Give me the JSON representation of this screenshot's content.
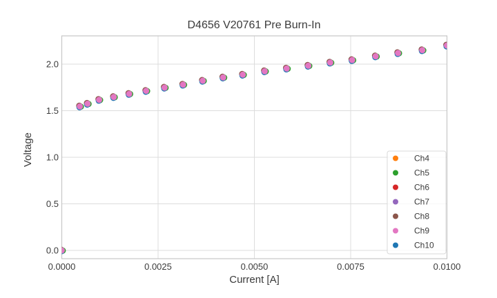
{
  "chart_data": {
    "type": "scatter",
    "title": "D4656 V20761 Pre Burn-In",
    "xlabel": "Current [A]",
    "ylabel": "Voltage",
    "xlim": [
      0,
      0.01
    ],
    "ylim": [
      -0.09,
      2.3
    ],
    "grid": "both",
    "grid_color": "#dcdcdc",
    "spine_color": "#c6c6c6",
    "background_color": "#ffffff",
    "legend_position": "lower-right",
    "x_ticks": {
      "values": [
        0.0,
        0.0025,
        0.005,
        0.0075,
        0.01
      ],
      "labels": [
        "0.0000",
        "0.0025",
        "0.0050",
        "0.0075",
        "0.0100"
      ]
    },
    "y_ticks": {
      "values": [
        0.0,
        0.5,
        1.0,
        1.5,
        2.0
      ],
      "labels": [
        "0.0",
        "0.5",
        "1.0",
        "1.5",
        "2.0"
      ]
    },
    "channels": [
      {
        "name": "Ch4",
        "color": "#ff7f0e"
      },
      {
        "name": "Ch5",
        "color": "#2ca02c"
      },
      {
        "name": "Ch6",
        "color": "#d62728"
      },
      {
        "name": "Ch7",
        "color": "#9467bd"
      },
      {
        "name": "Ch8",
        "color": "#8c564b"
      },
      {
        "name": "Ch9",
        "color": "#e377c2"
      },
      {
        "name": "Ch10",
        "color": "#1f77b4"
      }
    ],
    "overlap_note": "All channels plot nearly identical I-V curves; Ch9 (pink) markers are drawn on top with slight fringes of the other channel colors visible at marker edges.",
    "points": [
      [
        0.0,
        0.0
      ],
      [
        0.00047,
        1.546
      ],
      [
        0.00067,
        1.575
      ],
      [
        0.00097,
        1.617
      ],
      [
        0.00135,
        1.647
      ],
      [
        0.00175,
        1.681
      ],
      [
        0.00219,
        1.713
      ],
      [
        0.00267,
        1.748
      ],
      [
        0.00315,
        1.78
      ],
      [
        0.00366,
        1.822
      ],
      [
        0.00419,
        1.857
      ],
      [
        0.0047,
        1.887
      ],
      [
        0.00527,
        1.924
      ],
      [
        0.00584,
        1.953
      ],
      [
        0.0064,
        1.983
      ],
      [
        0.00697,
        2.017
      ],
      [
        0.00754,
        2.044
      ],
      [
        0.00815,
        2.084
      ],
      [
        0.00873,
        2.119
      ],
      [
        0.00936,
        2.15
      ],
      [
        0.01,
        2.2
      ]
    ]
  }
}
